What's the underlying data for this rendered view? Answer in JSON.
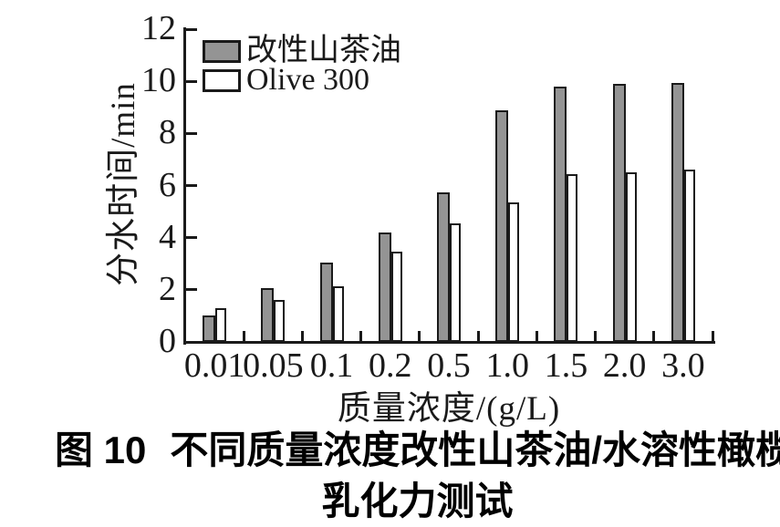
{
  "figure": {
    "caption": {
      "label": "图 10",
      "line1": "不同质量浓度改性山茶油/水溶性橄榄油",
      "line2": "乳化力测试"
    }
  },
  "chart_data": {
    "type": "bar",
    "title": "",
    "xlabel": "质量浓度/(g/L)",
    "ylabel": "分水时间/min",
    "categories": [
      "0.01",
      "0.05",
      "0.1",
      "0.2",
      "0.5",
      "1.0",
      "1.5",
      "2.0",
      "3.0"
    ],
    "series": [
      {
        "name": "改性山茶油",
        "color": "#949494",
        "values": [
          1.0,
          2.05,
          3.05,
          4.2,
          5.75,
          8.9,
          9.8,
          9.9,
          9.95
        ]
      },
      {
        "name": "Olive 300",
        "color": "#ffffff",
        "values": [
          1.3,
          1.6,
          2.15,
          3.45,
          4.55,
          5.35,
          6.45,
          6.5,
          6.6
        ]
      }
    ],
    "ylim": [
      0,
      12
    ],
    "yticks": [
      0,
      2,
      4,
      6,
      8,
      10,
      12
    ],
    "grid": false,
    "legend_position": "top-left-inside",
    "axis_color": "#1a1a1a",
    "bar_outline": "#1a1a1a"
  }
}
